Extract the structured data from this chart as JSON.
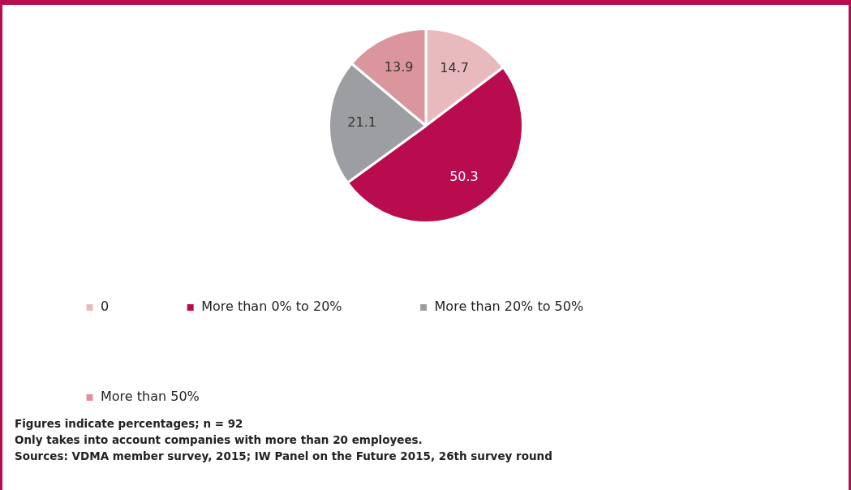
{
  "chart_data": {
    "type": "pie",
    "categories": [
      "0",
      "More than 0% to 20%",
      "More than 20% to 50%",
      "More than 50%"
    ],
    "values": [
      14.7,
      50.3,
      21.1,
      13.9
    ],
    "colors": [
      "#e8babd",
      "#b80c4e",
      "#9d9ea2",
      "#db959c"
    ],
    "data_labels": true,
    "legend": "bottom",
    "annotations": [
      "Figures indicate percentages; n = 92",
      "Only takes into account companies with more than 20 employees.",
      "Sources: VDMA member survey, 2015; IW Panel on the Future 2015, 26th survey round"
    ]
  }
}
